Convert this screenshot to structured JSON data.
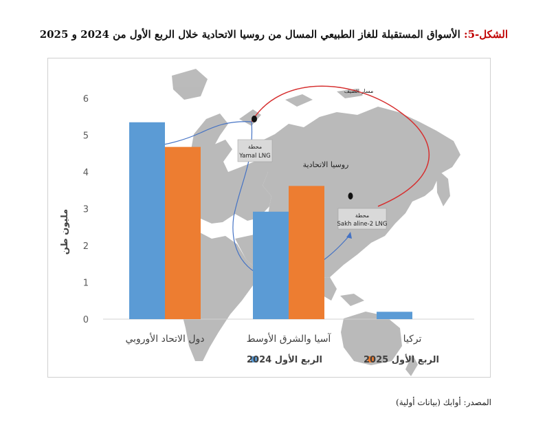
{
  "title": {
    "prefix": "الشكل-5:",
    "text": " الأسواق المستقبلة للغاز الطبيعي المسال من روسيا الاتحادية خلال الربع الأول من 2024 و 2025"
  },
  "source": "المصدر: أوابك (بيانات أولية)",
  "map_labels": {
    "summer_route": "مسار الصيف",
    "yamal_station": "محطة",
    "yamal_name": "Yamal LNG",
    "russia": "روسيا الاتحادية",
    "sakhalin_station": "محطة",
    "sakhalin_name": "Sakh aline-2 LNG"
  },
  "colors": {
    "series_2024": "#5b9bd5",
    "series_2025": "#ed7d31",
    "map_land": "#b7b7b7",
    "summer_route": "#d62f2f",
    "winter_route": "#4472c4"
  },
  "chart_data": {
    "type": "bar",
    "categories": [
      "دول الاتحاد الأوروبي",
      "آسيا والشرق الأوسط",
      "تركيا"
    ],
    "series": [
      {
        "name": "الربع الأول 2024",
        "values": [
          5.35,
          2.92,
          0.2
        ]
      },
      {
        "name": "الربع الأول 2025",
        "values": [
          4.68,
          3.62,
          null
        ]
      }
    ],
    "ylabel": "مليون طن",
    "ylim": [
      0,
      6
    ],
    "yticks": [
      0,
      1,
      2,
      3,
      4,
      5,
      6
    ],
    "grid": false,
    "legend": "bottom-center"
  }
}
